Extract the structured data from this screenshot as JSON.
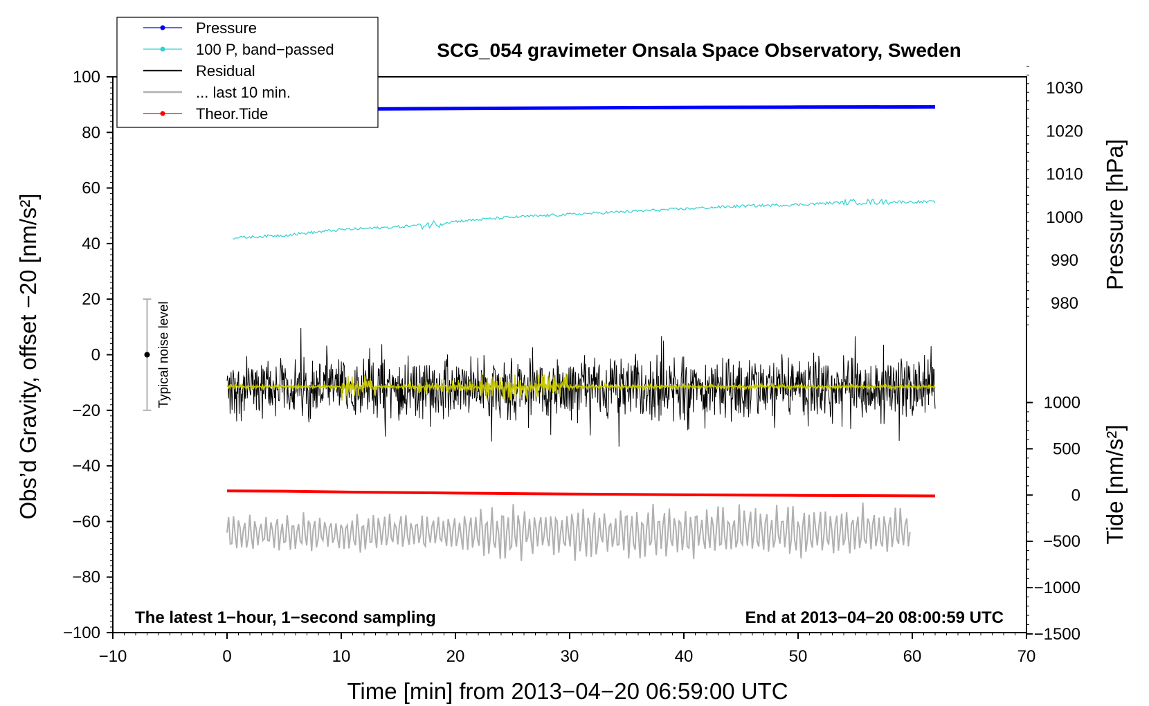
{
  "chart_data": {
    "type": "line",
    "title": "SCG_054 gravimeter Onsala Space Observatory, Sweden",
    "xlabel": "Time [min] from 2013−04−20 06:59:00 UTC",
    "ylabel_left": "Obs’d Gravity, offset −20 [nm/s²]",
    "ylabel_right_pressure": "Pressure [hPa]",
    "ylabel_right_tide": "Tide [nm/s²]",
    "xlim": [
      -10,
      70
    ],
    "ylim": [
      -100,
      100
    ],
    "x_ticks": [
      -10,
      0,
      10,
      20,
      30,
      40,
      50,
      60,
      70
    ],
    "x_tick_labels": [
      "−10",
      "0",
      "10",
      "20",
      "30",
      "40",
      "50",
      "60",
      "70"
    ],
    "y_ticks": [
      -100,
      -80,
      -60,
      -40,
      -20,
      0,
      20,
      40,
      60,
      80,
      100
    ],
    "y_tick_labels": [
      "−100",
      "−80",
      "−60",
      "−40",
      "−20",
      "0",
      "20",
      "40",
      "60",
      "80",
      "100"
    ],
    "pressure_axis": {
      "ticks": [
        980,
        990,
        1000,
        1010,
        1020,
        1030
      ],
      "tick_labels": [
        "980",
        "990",
        "1000",
        "1010",
        "1020",
        "1030"
      ],
      "left_axis_at_980": 18.5,
      "left_units_per_hPa": 1.55
    },
    "tide_axis": {
      "ticks": [
        -1500,
        -1000,
        -500,
        0,
        500,
        1000
      ],
      "tick_labels": [
        "−1500",
        "−1000",
        "−500",
        "0",
        "500",
        "1000"
      ],
      "left_axis_at_0": -50.5,
      "left_units_per_1000": 33.3
    },
    "legend": {
      "position": "top-left",
      "entries": [
        {
          "label": "Pressure",
          "color": "#0000ff",
          "marker": true
        },
        {
          "label": "100 P, band−passed",
          "color": "#30d0d0",
          "marker": true
        },
        {
          "label": "Residual",
          "color": "#000000",
          "marker": false
        },
        {
          "label": "... last 10 min.",
          "color": "#b0b0b0",
          "marker": false
        },
        {
          "label": "Theor.Tide",
          "color": "#ff0000",
          "marker": true
        }
      ]
    },
    "series": [
      {
        "name": "Pressure",
        "color": "#0000ff",
        "x": [
          0,
          10,
          20,
          30,
          40,
          50,
          62
        ],
        "y": [
          88.2,
          88.4,
          88.6,
          88.8,
          89.0,
          89.1,
          89.2
        ]
      },
      {
        "name": "100 P, band−passed",
        "color": "#30d0d0",
        "x": [
          0.5,
          5,
          10,
          15,
          18,
          20,
          25,
          30,
          35,
          40,
          45,
          50,
          55,
          60,
          62
        ],
        "y": [
          42,
          43,
          45,
          46,
          47,
          48,
          49.5,
          50.5,
          51.5,
          52.5,
          53.5,
          54,
          55,
          55,
          55
        ]
      },
      {
        "name": "Residual",
        "color": "#000000",
        "x_start": 0,
        "x_end": 62,
        "center": -12,
        "spread": 13
      },
      {
        "name": "Residual (smoothed)",
        "color": "#c8c800",
        "x_start": 0,
        "x_end": 62,
        "center": -11.5
      },
      {
        "name": "Theor.Tide",
        "color": "#ff0000",
        "x": [
          0,
          5,
          10,
          20,
          30,
          40,
          50,
          62
        ],
        "y": [
          -49,
          -49.1,
          -49.4,
          -49.8,
          -50.1,
          -50.4,
          -50.6,
          -50.8
        ]
      },
      {
        "name": "... last 10 min.",
        "color": "#b0b0b0",
        "x_start": 0,
        "x_end": 59.8,
        "center": -64,
        "spread": 8
      }
    ],
    "noise_bar": {
      "label": "Typical noise level",
      "x": -7,
      "center": 0,
      "low": -20,
      "high": 20
    },
    "annotations": {
      "left": "The latest 1−hour, 1−second sampling",
      "right": "End at 2013−04−20 08:00:59 UTC"
    }
  }
}
